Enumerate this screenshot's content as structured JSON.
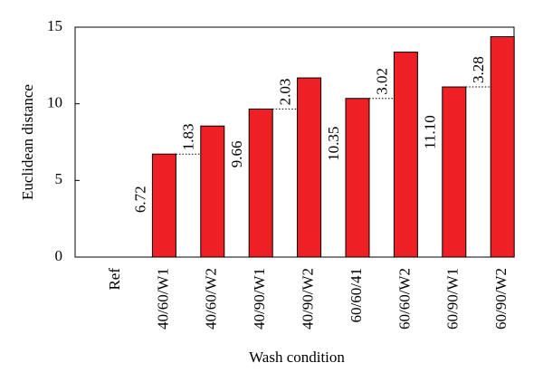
{
  "chart_data": {
    "type": "bar",
    "x_label": "Wash condition",
    "y_label": "Euclidean distance",
    "categories": [
      "Ref",
      "40/60/W1",
      "40/60/W2",
      "40/90/W1",
      "40/90/W2",
      "60/60/41",
      "60/60/W2",
      "60/90/W1",
      "60/90/W2"
    ],
    "values": [
      0,
      6.72,
      8.55,
      9.66,
      11.69,
      10.35,
      13.37,
      11.1,
      14.38
    ],
    "value_labels": [
      null,
      "6.72",
      null,
      "9.66",
      null,
      "10.35",
      null,
      "11.10",
      null
    ],
    "difference_labels": [
      null,
      null,
      "1.83",
      null,
      "2.03",
      null,
      "3.02",
      null,
      "3.28"
    ],
    "color": "#ee2024",
    "ylim": [
      0,
      15
    ],
    "yticks": [
      0,
      5,
      10,
      15
    ],
    "grid": false
  }
}
